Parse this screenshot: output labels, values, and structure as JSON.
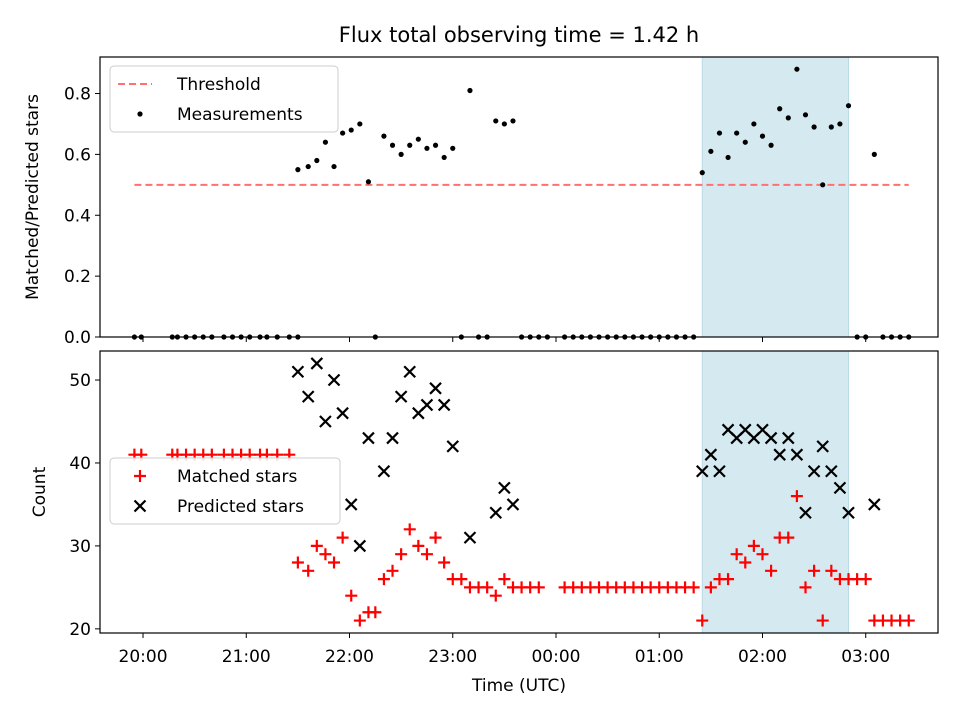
{
  "chart_data": [
    {
      "type": "scatter",
      "title": "Flux total observing time = 1.42 h",
      "xlabel": "",
      "ylabel": "Matched/Predicted stars",
      "ylim": [
        0,
        0.92
      ],
      "yticks": [
        "0.0",
        "0.2",
        "0.4",
        "0.6",
        "0.8"
      ],
      "xtick_labels": [],
      "legend_position": "upper-left",
      "shaded_region": {
        "x_start": "01:25",
        "x_end": "02:50",
        "color": "#d5eaf0"
      },
      "threshold": {
        "name": "Threshold",
        "value": 0.5,
        "x_start": "19:55",
        "x_end": "03:25",
        "color": "#ff7070",
        "style": "dashed"
      },
      "series": [
        {
          "name": "Measurements",
          "color": "#000000",
          "marker": "dot",
          "points": [
            [
              "19:55",
              0
            ],
            [
              "19:59",
              0
            ],
            [
              "20:17",
              0
            ],
            [
              "20:20",
              0
            ],
            [
              "20:25",
              0
            ],
            [
              "20:30",
              0
            ],
            [
              "20:35",
              0
            ],
            [
              "20:40",
              0
            ],
            [
              "20:47",
              0
            ],
            [
              "20:52",
              0
            ],
            [
              "20:57",
              0
            ],
            [
              "21:02",
              0
            ],
            [
              "21:08",
              0
            ],
            [
              "21:12",
              0
            ],
            [
              "21:18",
              0
            ],
            [
              "21:25",
              0
            ],
            [
              "21:30",
              0
            ],
            [
              "21:30",
              0.55
            ],
            [
              "21:36",
              0.56
            ],
            [
              "21:41",
              0.58
            ],
            [
              "21:46",
              0.64
            ],
            [
              "21:51",
              0.56
            ],
            [
              "21:56",
              0.67
            ],
            [
              "22:01",
              0.68
            ],
            [
              "22:06",
              0.7
            ],
            [
              "22:11",
              0.51
            ],
            [
              "22:15",
              0
            ],
            [
              "22:20",
              0.66
            ],
            [
              "22:25",
              0.63
            ],
            [
              "22:30",
              0.6
            ],
            [
              "22:35",
              0.63
            ],
            [
              "22:40",
              0.65
            ],
            [
              "22:45",
              0.62
            ],
            [
              "22:50",
              0.63
            ],
            [
              "22:55",
              0.59
            ],
            [
              "23:00",
              0.62
            ],
            [
              "23:05",
              0
            ],
            [
              "23:10",
              0.81
            ],
            [
              "23:15",
              0
            ],
            [
              "23:20",
              0
            ],
            [
              "23:25",
              0.71
            ],
            [
              "23:30",
              0.7
            ],
            [
              "23:35",
              0.71
            ],
            [
              "23:40",
              0
            ],
            [
              "23:45",
              0
            ],
            [
              "23:50",
              0
            ],
            [
              "23:55",
              0
            ],
            [
              "00:05",
              0
            ],
            [
              "00:10",
              0
            ],
            [
              "00:15",
              0
            ],
            [
              "00:20",
              0
            ],
            [
              "00:25",
              0
            ],
            [
              "00:30",
              0
            ],
            [
              "00:35",
              0
            ],
            [
              "00:40",
              0
            ],
            [
              "00:45",
              0
            ],
            [
              "00:50",
              0
            ],
            [
              "00:55",
              0
            ],
            [
              "01:00",
              0
            ],
            [
              "01:05",
              0
            ],
            [
              "01:10",
              0
            ],
            [
              "01:15",
              0
            ],
            [
              "01:20",
              0
            ],
            [
              "01:25",
              0.54
            ],
            [
              "01:30",
              0.61
            ],
            [
              "01:35",
              0.67
            ],
            [
              "01:40",
              0.59
            ],
            [
              "01:45",
              0.67
            ],
            [
              "01:50",
              0.64
            ],
            [
              "01:55",
              0.7
            ],
            [
              "02:00",
              0.66
            ],
            [
              "02:05",
              0.63
            ],
            [
              "02:10",
              0.75
            ],
            [
              "02:15",
              0.72
            ],
            [
              "02:20",
              0.88
            ],
            [
              "02:25",
              0.73
            ],
            [
              "02:30",
              0.69
            ],
            [
              "02:35",
              0.5
            ],
            [
              "02:40",
              0.69
            ],
            [
              "02:45",
              0.7
            ],
            [
              "02:50",
              0.76
            ],
            [
              "02:55",
              0
            ],
            [
              "03:00",
              0
            ],
            [
              "03:05",
              0.6
            ],
            [
              "03:10",
              0
            ],
            [
              "03:15",
              0
            ],
            [
              "03:20",
              0
            ],
            [
              "03:25",
              0
            ]
          ]
        }
      ]
    },
    {
      "type": "scatter",
      "title": "",
      "xlabel": "Time (UTC)",
      "ylabel": "Count",
      "ylim": [
        19.5,
        53.5
      ],
      "yticks": [
        "20",
        "30",
        "40",
        "50"
      ],
      "xtick_labels": [
        "20:00",
        "21:00",
        "22:00",
        "23:00",
        "00:00",
        "01:00",
        "02:00",
        "03:00"
      ],
      "legend_position": "center-left",
      "shaded_region": {
        "x_start": "01:25",
        "x_end": "02:50",
        "color": "#d5eaf0"
      },
      "series": [
        {
          "name": "Matched stars",
          "color": "#ff0000",
          "marker": "plus",
          "points": [
            [
              "19:55",
              41
            ],
            [
              "19:59",
              41
            ],
            [
              "20:17",
              41
            ],
            [
              "20:20",
              41
            ],
            [
              "20:25",
              41
            ],
            [
              "20:30",
              41
            ],
            [
              "20:35",
              41
            ],
            [
              "20:40",
              41
            ],
            [
              "20:47",
              41
            ],
            [
              "20:52",
              41
            ],
            [
              "20:57",
              41
            ],
            [
              "21:02",
              41
            ],
            [
              "21:08",
              41
            ],
            [
              "21:12",
              41
            ],
            [
              "21:18",
              41
            ],
            [
              "21:25",
              41
            ],
            [
              "21:30",
              28
            ],
            [
              "21:36",
              27
            ],
            [
              "21:41",
              30
            ],
            [
              "21:46",
              29
            ],
            [
              "21:51",
              28
            ],
            [
              "21:56",
              31
            ],
            [
              "22:01",
              24
            ],
            [
              "22:06",
              21
            ],
            [
              "22:11",
              22
            ],
            [
              "22:15",
              22
            ],
            [
              "22:20",
              26
            ],
            [
              "22:25",
              27
            ],
            [
              "22:30",
              29
            ],
            [
              "22:35",
              32
            ],
            [
              "22:40",
              30
            ],
            [
              "22:45",
              29
            ],
            [
              "22:50",
              31
            ],
            [
              "22:55",
              28
            ],
            [
              "23:00",
              26
            ],
            [
              "23:05",
              26
            ],
            [
              "23:10",
              25
            ],
            [
              "23:15",
              25
            ],
            [
              "23:20",
              25
            ],
            [
              "23:25",
              24
            ],
            [
              "23:30",
              26
            ],
            [
              "23:35",
              25
            ],
            [
              "23:40",
              25
            ],
            [
              "23:45",
              25
            ],
            [
              "23:50",
              25
            ],
            [
              "00:05",
              25
            ],
            [
              "00:10",
              25
            ],
            [
              "00:15",
              25
            ],
            [
              "00:20",
              25
            ],
            [
              "00:25",
              25
            ],
            [
              "00:30",
              25
            ],
            [
              "00:35",
              25
            ],
            [
              "00:40",
              25
            ],
            [
              "00:45",
              25
            ],
            [
              "00:50",
              25
            ],
            [
              "00:55",
              25
            ],
            [
              "01:00",
              25
            ],
            [
              "01:05",
              25
            ],
            [
              "01:10",
              25
            ],
            [
              "01:15",
              25
            ],
            [
              "01:20",
              25
            ],
            [
              "01:25",
              21
            ],
            [
              "01:30",
              25
            ],
            [
              "01:35",
              26
            ],
            [
              "01:40",
              26
            ],
            [
              "01:45",
              29
            ],
            [
              "01:50",
              28
            ],
            [
              "01:55",
              30
            ],
            [
              "02:00",
              29
            ],
            [
              "02:05",
              27
            ],
            [
              "02:10",
              31
            ],
            [
              "02:15",
              31
            ],
            [
              "02:20",
              36
            ],
            [
              "02:25",
              25
            ],
            [
              "02:30",
              27
            ],
            [
              "02:35",
              21
            ],
            [
              "02:40",
              27
            ],
            [
              "02:45",
              26
            ],
            [
              "02:50",
              26
            ],
            [
              "02:55",
              26
            ],
            [
              "03:00",
              26
            ],
            [
              "03:05",
              21
            ],
            [
              "03:10",
              21
            ],
            [
              "03:15",
              21
            ],
            [
              "03:20",
              21
            ],
            [
              "03:25",
              21
            ]
          ]
        },
        {
          "name": "Predicted stars",
          "color": "#000000",
          "marker": "x",
          "points": [
            [
              "21:30",
              51
            ],
            [
              "21:36",
              48
            ],
            [
              "21:41",
              52
            ],
            [
              "21:46",
              45
            ],
            [
              "21:51",
              50
            ],
            [
              "21:56",
              46
            ],
            [
              "22:01",
              35
            ],
            [
              "22:06",
              30
            ],
            [
              "22:11",
              43
            ],
            [
              "22:20",
              39
            ],
            [
              "22:25",
              43
            ],
            [
              "22:30",
              48
            ],
            [
              "22:35",
              51
            ],
            [
              "22:40",
              46
            ],
            [
              "22:45",
              47
            ],
            [
              "22:50",
              49
            ],
            [
              "22:55",
              47
            ],
            [
              "23:00",
              42
            ],
            [
              "23:10",
              31
            ],
            [
              "23:25",
              34
            ],
            [
              "23:30",
              37
            ],
            [
              "23:35",
              35
            ],
            [
              "01:25",
              39
            ],
            [
              "01:30",
              41
            ],
            [
              "01:35",
              39
            ],
            [
              "01:40",
              44
            ],
            [
              "01:45",
              43
            ],
            [
              "01:50",
              44
            ],
            [
              "01:55",
              43
            ],
            [
              "02:00",
              44
            ],
            [
              "02:05",
              43
            ],
            [
              "02:10",
              41
            ],
            [
              "02:15",
              43
            ],
            [
              "02:20",
              41
            ],
            [
              "02:25",
              34
            ],
            [
              "02:30",
              39
            ],
            [
              "02:35",
              42
            ],
            [
              "02:40",
              39
            ],
            [
              "02:45",
              37
            ],
            [
              "02:50",
              34
            ],
            [
              "03:05",
              35
            ]
          ]
        }
      ]
    }
  ]
}
